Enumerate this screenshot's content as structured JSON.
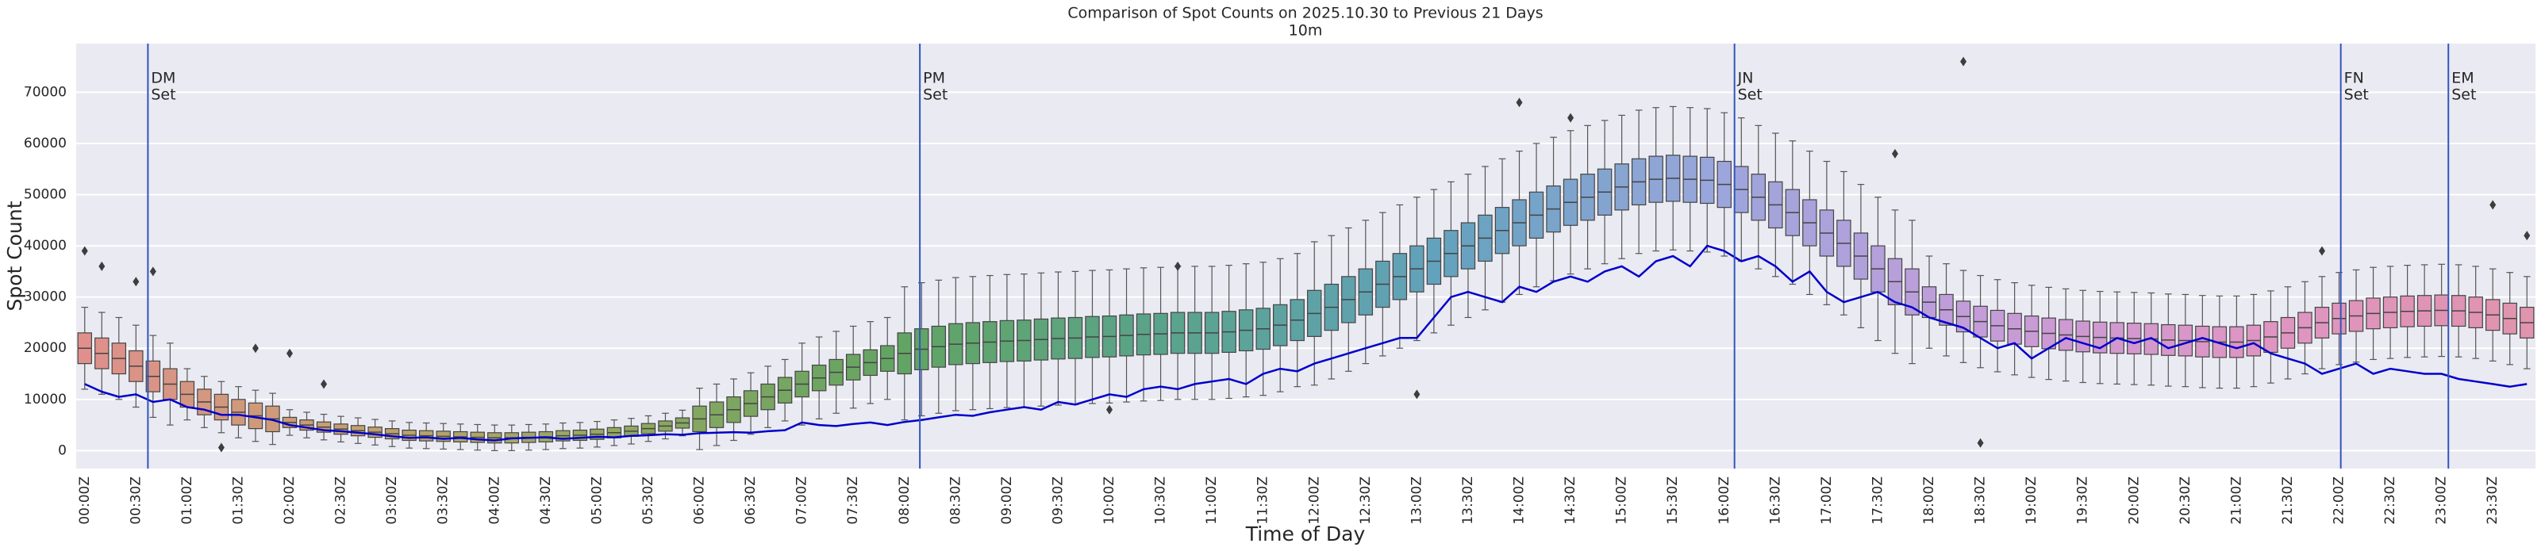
{
  "chart_data": {
    "type": "boxplot",
    "title": "Comparison of Spot Counts on 2025.10.30 to Previous 21 Days",
    "subtitle": "10m",
    "x_label": "Time of Day",
    "y_label": "Spot Count",
    "ylim": [
      -3500,
      79500
    ],
    "yticks": [
      0,
      10000,
      20000,
      30000,
      40000,
      50000,
      60000,
      70000
    ],
    "grid": true,
    "box_palette": [
      "#e0908c",
      "#c4a070",
      "#8fa860",
      "#62a463",
      "#5aa38c",
      "#63a2bd",
      "#9aa6dc",
      "#c59cd9",
      "#de95c3",
      "#e094ad"
    ],
    "line_color": "#0000cc",
    "event_color": "#3355bb",
    "categories": [
      "00:00Z",
      null,
      null,
      "00:30Z",
      null,
      null,
      "01:00Z",
      null,
      null,
      "01:30Z",
      null,
      null,
      "02:00Z",
      null,
      null,
      "02:30Z",
      null,
      null,
      "03:00Z",
      null,
      null,
      "03:30Z",
      null,
      null,
      "04:00Z",
      null,
      null,
      "04:30Z",
      null,
      null,
      "05:00Z",
      null,
      null,
      "05:30Z",
      null,
      null,
      "06:00Z",
      null,
      null,
      "06:30Z",
      null,
      null,
      "07:00Z",
      null,
      null,
      "07:30Z",
      null,
      null,
      "08:00Z",
      null,
      null,
      "08:30Z",
      null,
      null,
      "09:00Z",
      null,
      null,
      "09:30Z",
      null,
      null,
      "10:00Z",
      null,
      null,
      "10:30Z",
      null,
      null,
      "11:00Z",
      null,
      null,
      "11:30Z",
      null,
      null,
      "12:00Z",
      null,
      null,
      "12:30Z",
      null,
      null,
      "13:00Z",
      null,
      null,
      "13:30Z",
      null,
      null,
      "14:00Z",
      null,
      null,
      "14:30Z",
      null,
      null,
      "15:00Z",
      null,
      null,
      "15:30Z",
      null,
      null,
      "16:00Z",
      null,
      null,
      "16:30Z",
      null,
      null,
      "17:00Z",
      null,
      null,
      "17:30Z",
      null,
      null,
      "18:00Z",
      null,
      null,
      "18:30Z",
      null,
      null,
      "19:00Z",
      null,
      null,
      "19:30Z",
      null,
      null,
      "20:00Z",
      null,
      null,
      "20:30Z",
      null,
      null,
      "21:00Z",
      null,
      null,
      "21:30Z",
      null,
      null,
      "22:00Z",
      null,
      null,
      "22:30Z",
      null,
      null,
      "23:00Z",
      null,
      null,
      "23:30Z",
      null,
      null
    ],
    "boxes": [
      [
        12000,
        17000,
        20000,
        23000,
        28000
      ],
      [
        11000,
        16000,
        19000,
        22000,
        27000
      ],
      [
        10000,
        15000,
        18000,
        21000,
        26000
      ],
      [
        8500,
        13500,
        16500,
        19500,
        24500
      ],
      [
        6500,
        11500,
        14500,
        17500,
        22500
      ],
      [
        5000,
        10000,
        13000,
        16000,
        21000
      ],
      [
        6000,
        8500,
        11000,
        13500,
        16000
      ],
      [
        4500,
        7000,
        9500,
        12000,
        14500
      ],
      [
        3500,
        6000,
        8500,
        11000,
        13500
      ],
      [
        2500,
        5000,
        7500,
        10000,
        12500
      ],
      [
        1800,
        4300,
        6800,
        9300,
        11800
      ],
      [
        1200,
        3700,
        6200,
        8700,
        11200
      ],
      [
        3000,
        4500,
        5500,
        6500,
        8000
      ],
      [
        2500,
        4000,
        5000,
        6000,
        7500
      ],
      [
        2100,
        3600,
        4600,
        5600,
        7100
      ],
      [
        1700,
        3200,
        4200,
        5200,
        6700
      ],
      [
        1400,
        2900,
        3900,
        4900,
        6400
      ],
      [
        1100,
        2600,
        3600,
        4600,
        6100
      ],
      [
        800,
        2300,
        3300,
        4300,
        5800
      ],
      [
        500,
        2000,
        3000,
        4000,
        5500
      ],
      [
        400,
        1900,
        2900,
        3900,
        5400
      ],
      [
        300,
        1800,
        2800,
        3800,
        5300
      ],
      [
        200,
        1700,
        2700,
        3700,
        5200
      ],
      [
        100,
        1600,
        2600,
        3600,
        5100
      ],
      [
        0,
        1500,
        2500,
        3500,
        5000
      ],
      [
        0,
        1500,
        2500,
        3500,
        5000
      ],
      [
        100,
        1600,
        2600,
        3600,
        5100
      ],
      [
        200,
        1700,
        2700,
        3700,
        5200
      ],
      [
        400,
        1900,
        2900,
        3900,
        5400
      ],
      [
        500,
        2000,
        3000,
        4000,
        5500
      ],
      [
        700,
        2200,
        3200,
        4200,
        5700
      ],
      [
        1000,
        2500,
        3500,
        4500,
        6000
      ],
      [
        1300,
        2800,
        3800,
        4800,
        6300
      ],
      [
        1800,
        3300,
        4300,
        5300,
        6800
      ],
      [
        2300,
        3800,
        4800,
        5800,
        7300
      ],
      [
        2900,
        4400,
        5400,
        6400,
        7900
      ],
      [
        200,
        3700,
        6200,
        8700,
        12200
      ],
      [
        1000,
        4500,
        7000,
        9500,
        13000
      ],
      [
        2000,
        5500,
        8000,
        10500,
        14000
      ],
      [
        3200,
        6700,
        9200,
        11700,
        15200
      ],
      [
        4500,
        8000,
        10500,
        13000,
        16500
      ],
      [
        5800,
        9300,
        11800,
        14300,
        17800
      ],
      [
        5000,
        10500,
        13000,
        15500,
        21000
      ],
      [
        6200,
        11700,
        14200,
        16700,
        22200
      ],
      [
        7300,
        12800,
        15300,
        17800,
        23300
      ],
      [
        8300,
        13800,
        16300,
        18800,
        24300
      ],
      [
        9200,
        14700,
        17200,
        19700,
        25200
      ],
      [
        10000,
        15500,
        18000,
        20500,
        26000
      ],
      [
        6000,
        15000,
        19000,
        23000,
        32000
      ],
      [
        6800,
        15800,
        19800,
        23800,
        32800
      ],
      [
        7300,
        16300,
        20300,
        24300,
        33300
      ],
      [
        7800,
        16800,
        20800,
        24800,
        33800
      ],
      [
        8000,
        17000,
        21000,
        25000,
        34000
      ],
      [
        8200,
        17200,
        21200,
        25200,
        34200
      ],
      [
        8400,
        17400,
        21400,
        25400,
        34400
      ],
      [
        8500,
        17500,
        21500,
        25500,
        34500
      ],
      [
        8700,
        17700,
        21700,
        25700,
        34700
      ],
      [
        8900,
        17900,
        21900,
        25900,
        34900
      ],
      [
        9000,
        18000,
        22000,
        26000,
        35000
      ],
      [
        9200,
        18200,
        22200,
        26200,
        35200
      ],
      [
        9300,
        18300,
        22300,
        26300,
        35300
      ],
      [
        9500,
        18500,
        22500,
        26500,
        35500
      ],
      [
        9700,
        18700,
        22700,
        26700,
        35700
      ],
      [
        9800,
        18800,
        22800,
        26800,
        35800
      ],
      [
        10000,
        19000,
        23000,
        27000,
        36000
      ],
      [
        10000,
        19000,
        23000,
        27000,
        36000
      ],
      [
        10000,
        19000,
        23000,
        27000,
        36000
      ],
      [
        10200,
        19200,
        23200,
        27200,
        36200
      ],
      [
        10500,
        19500,
        23500,
        27500,
        36500
      ],
      [
        10800,
        19800,
        23800,
        27800,
        36800
      ],
      [
        11500,
        20500,
        24500,
        28500,
        37500
      ],
      [
        12500,
        21500,
        25500,
        29500,
        38500
      ],
      [
        12800,
        22300,
        26800,
        31300,
        40800
      ],
      [
        14000,
        23500,
        28000,
        32500,
        42000
      ],
      [
        15500,
        25000,
        29500,
        34000,
        43500
      ],
      [
        17000,
        26500,
        31000,
        35500,
        45000
      ],
      [
        18500,
        28000,
        32500,
        37000,
        46500
      ],
      [
        20000,
        29500,
        34000,
        38500,
        48000
      ],
      [
        21500,
        31000,
        35500,
        40000,
        49500
      ],
      [
        23000,
        32500,
        37000,
        41500,
        51000
      ],
      [
        24500,
        34000,
        38500,
        43000,
        52500
      ],
      [
        26000,
        35500,
        40000,
        44500,
        54000
      ],
      [
        27500,
        37000,
        41500,
        46000,
        55500
      ],
      [
        29000,
        38500,
        43000,
        47500,
        57000
      ],
      [
        30500,
        40000,
        44500,
        49000,
        58500
      ],
      [
        32000,
        41500,
        46000,
        50500,
        60000
      ],
      [
        33200,
        42700,
        47200,
        51700,
        61200
      ],
      [
        34500,
        44000,
        48500,
        53000,
        62500
      ],
      [
        35500,
        45000,
        49500,
        54000,
        63500
      ],
      [
        36500,
        46000,
        50500,
        55000,
        64500
      ],
      [
        37500,
        47000,
        51500,
        56000,
        65500
      ],
      [
        38500,
        48000,
        52500,
        57000,
        66500
      ],
      [
        39000,
        48500,
        53000,
        57500,
        67000
      ],
      [
        39200,
        48700,
        53200,
        57700,
        67200
      ],
      [
        39000,
        48500,
        53000,
        57500,
        67000
      ],
      [
        38800,
        48300,
        52800,
        57300,
        66800
      ],
      [
        38000,
        47500,
        52000,
        56500,
        66000
      ],
      [
        37000,
        46500,
        51000,
        55500,
        65000
      ],
      [
        35500,
        45000,
        49500,
        54000,
        63500
      ],
      [
        34000,
        43500,
        48000,
        52500,
        62000
      ],
      [
        32500,
        42000,
        46500,
        51000,
        60500
      ],
      [
        30500,
        40000,
        44500,
        49000,
        58500
      ],
      [
        28500,
        38000,
        42500,
        47000,
        56500
      ],
      [
        26500,
        36000,
        40500,
        45000,
        54500
      ],
      [
        24000,
        33500,
        38000,
        42500,
        52000
      ],
      [
        21500,
        31000,
        35500,
        40000,
        49500
      ],
      [
        19000,
        28500,
        33000,
        37500,
        47000
      ],
      [
        17000,
        26500,
        31000,
        35500,
        45000
      ],
      [
        20000,
        26000,
        29000,
        32000,
        38000
      ],
      [
        18500,
        24500,
        27500,
        30500,
        36500
      ],
      [
        17200,
        23200,
        26200,
        29200,
        35200
      ],
      [
        16200,
        22200,
        25200,
        28200,
        34200
      ],
      [
        15400,
        21400,
        24400,
        27400,
        33400
      ],
      [
        14800,
        20800,
        23800,
        26800,
        32800
      ],
      [
        14300,
        20300,
        23300,
        26300,
        32300
      ],
      [
        13900,
        19900,
        22900,
        25900,
        31900
      ],
      [
        13600,
        19600,
        22600,
        25600,
        31600
      ],
      [
        13300,
        19300,
        22300,
        25300,
        31300
      ],
      [
        13100,
        19100,
        22100,
        25100,
        31100
      ],
      [
        13000,
        19000,
        22000,
        25000,
        31000
      ],
      [
        12900,
        18900,
        21900,
        24900,
        30900
      ],
      [
        12800,
        18800,
        21800,
        24800,
        30800
      ],
      [
        12600,
        18600,
        21600,
        24600,
        30600
      ],
      [
        12500,
        18500,
        21500,
        24500,
        30500
      ],
      [
        12300,
        18300,
        21300,
        24300,
        30300
      ],
      [
        12200,
        18200,
        21200,
        24200,
        30200
      ],
      [
        12200,
        18200,
        21200,
        24200,
        30200
      ],
      [
        12500,
        18500,
        21500,
        24500,
        30500
      ],
      [
        13200,
        19200,
        22200,
        25200,
        31200
      ],
      [
        14000,
        20000,
        23000,
        26000,
        32000
      ],
      [
        15000,
        21000,
        24000,
        27000,
        33000
      ],
      [
        16000,
        22000,
        25000,
        28000,
        34000
      ],
      [
        16800,
        22800,
        25800,
        28800,
        34800
      ],
      [
        17300,
        23300,
        26300,
        29300,
        35300
      ],
      [
        17800,
        23800,
        26800,
        29800,
        35800
      ],
      [
        18000,
        24000,
        27000,
        30000,
        36000
      ],
      [
        18200,
        24200,
        27200,
        30200,
        36200
      ],
      [
        18300,
        24300,
        27300,
        30300,
        36300
      ],
      [
        18400,
        24400,
        27400,
        30400,
        36400
      ],
      [
        18300,
        24300,
        27300,
        30300,
        36300
      ],
      [
        18000,
        24000,
        27000,
        30000,
        36000
      ],
      [
        17500,
        23500,
        26500,
        29500,
        35500
      ],
      [
        16800,
        22800,
        25800,
        28800,
        34800
      ],
      [
        16000,
        22000,
        25000,
        28000,
        34000
      ]
    ],
    "outliers": [
      [
        0,
        39000
      ],
      [
        1,
        36000
      ],
      [
        3,
        33000
      ],
      [
        4,
        35000
      ],
      [
        8,
        600
      ],
      [
        10,
        20000
      ],
      [
        12,
        19000
      ],
      [
        14,
        13000
      ],
      [
        60,
        8000
      ],
      [
        64,
        36000
      ],
      [
        78,
        11000
      ],
      [
        84,
        68000
      ],
      [
        87,
        65000
      ],
      [
        106,
        58000
      ],
      [
        110,
        76000
      ],
      [
        111,
        1500
      ],
      [
        131,
        39000
      ],
      [
        141,
        48000
      ],
      [
        143,
        42000
      ]
    ],
    "current": {
      "values": [
        13000,
        11500,
        10500,
        11000,
        9500,
        10000,
        8500,
        8000,
        7000,
        7000,
        6500,
        6000,
        5000,
        4500,
        4000,
        3800,
        3500,
        3200,
        2800,
        2500,
        2600,
        2300,
        2500,
        2200,
        2000,
        2400,
        2500,
        2600,
        2300,
        2500,
        2700,
        2600,
        2900,
        3000,
        3200,
        3100,
        3400,
        3500,
        3600,
        3500,
        3800,
        4000,
        5500,
        5000,
        4800,
        5200,
        5500,
        5000,
        5600,
        6000,
        6500,
        7000,
        6800,
        7500,
        8000,
        8500,
        8000,
        9500,
        9000,
        10000,
        11000,
        10500,
        12000,
        12500,
        12000,
        13000,
        13500,
        14000,
        13000,
        15000,
        16000,
        15500,
        17000,
        18000,
        19000,
        20000,
        21000,
        22000,
        22000,
        26000,
        30000,
        31000,
        30000,
        29000,
        32000,
        31000,
        33000,
        34000,
        33000,
        35000,
        36000,
        34000,
        37000,
        38000,
        36000,
        40000,
        39000,
        37000,
        38000,
        36000,
        33000,
        35000,
        31000,
        29000,
        30000,
        31000,
        29000,
        28000,
        26000,
        25000,
        24000,
        22000,
        20000,
        21000,
        18000,
        20000,
        22000,
        21000,
        20000,
        22000,
        21000,
        22000,
        20000,
        21000,
        22000,
        21000,
        20000,
        21000,
        19000,
        18000,
        17000,
        15000,
        16000,
        17000,
        15000,
        16000,
        15500,
        15000,
        15000,
        14000,
        13500,
        13000,
        12500,
        13000
      ]
    },
    "events": [
      {
        "x": 3.7,
        "label": [
          "DM",
          "Set"
        ]
      },
      {
        "x": 48.9,
        "label": [
          "PM",
          "Set"
        ]
      },
      {
        "x": 96.6,
        "label": [
          "JN",
          "Set"
        ]
      },
      {
        "x": 132.1,
        "label": [
          "FN",
          "Set"
        ]
      },
      {
        "x": 138.4,
        "label": [
          "EM",
          "Set"
        ]
      }
    ]
  }
}
